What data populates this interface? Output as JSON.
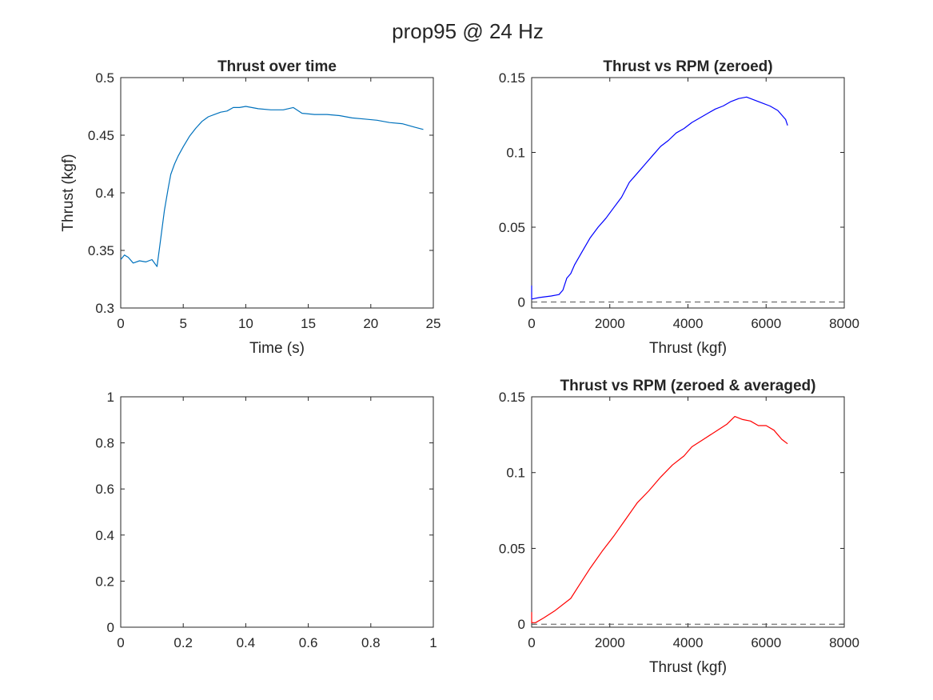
{
  "figure": {
    "title": "prop95 @ 24 Hz"
  },
  "chart_data": [
    {
      "id": "thrust-over-time",
      "type": "line",
      "title": "Thrust over time",
      "xlabel": "Time (s)",
      "ylabel": "Thrust (kgf)",
      "xlim": [
        0,
        25
      ],
      "ylim": [
        0.3,
        0.5
      ],
      "xticks": [
        0,
        5,
        10,
        15,
        20,
        25
      ],
      "yticks": [
        0.3,
        0.35,
        0.4,
        0.45,
        0.5
      ],
      "xtick_labels": [
        "0",
        "5",
        "10",
        "15",
        "20",
        "25"
      ],
      "ytick_labels": [
        "0.3",
        "0.35",
        "0.4",
        "0.45",
        "0.5"
      ],
      "grid": false,
      "series": [
        {
          "color": "#0072BD",
          "x": [
            0,
            0.3,
            0.6,
            1.0,
            1.5,
            2.0,
            2.5,
            2.9,
            3.1,
            3.5,
            3.8,
            4.0,
            4.3,
            4.6,
            5.0,
            5.5,
            6.0,
            6.5,
            7.0,
            7.5,
            8.0,
            8.5,
            9.0,
            9.5,
            10.0,
            11.0,
            12.0,
            13.0,
            13.8,
            14.5,
            15.5,
            16.5,
            17.5,
            18.5,
            19.5,
            20.5,
            21.5,
            22.5,
            23.5,
            24.2
          ],
          "y": [
            0.342,
            0.346,
            0.344,
            0.339,
            0.341,
            0.34,
            0.342,
            0.336,
            0.352,
            0.385,
            0.404,
            0.416,
            0.425,
            0.432,
            0.44,
            0.449,
            0.456,
            0.462,
            0.466,
            0.468,
            0.47,
            0.471,
            0.474,
            0.474,
            0.475,
            0.473,
            0.472,
            0.472,
            0.474,
            0.469,
            0.468,
            0.468,
            0.467,
            0.465,
            0.464,
            0.463,
            0.461,
            0.46,
            0.457,
            0.455
          ]
        }
      ]
    },
    {
      "id": "thrust-vs-rpm-zeroed",
      "type": "line",
      "title": "Thrust vs RPM (zeroed)",
      "xlabel": "Thrust (kgf)",
      "ylabel": "",
      "xlim": [
        0,
        8000
      ],
      "ylim": [
        -0.004,
        0.15
      ],
      "xticks": [
        0,
        2000,
        4000,
        6000,
        8000
      ],
      "yticks": [
        0,
        0.05,
        0.1,
        0.15
      ],
      "xtick_labels": [
        "0",
        "2000",
        "4000",
        "6000",
        "8000"
      ],
      "ytick_labels": [
        "0",
        "0.05",
        "0.1",
        "0.15"
      ],
      "grid": false,
      "reference_line": {
        "y": 0,
        "style": "dashed"
      },
      "series": [
        {
          "color": "#0000FF",
          "x": [
            0,
            0,
            200,
            500,
            700,
            800,
            900,
            1000,
            1100,
            1300,
            1500,
            1700,
            1900,
            2100,
            2300,
            2500,
            2700,
            2900,
            3100,
            3300,
            3500,
            3700,
            3900,
            4100,
            4300,
            4500,
            4700,
            4900,
            5100,
            5300,
            5500,
            5700,
            5900,
            6100,
            6300,
            6500,
            6550
          ],
          "y": [
            0.011,
            0.002,
            0.003,
            0.004,
            0.005,
            0.008,
            0.016,
            0.019,
            0.025,
            0.034,
            0.043,
            0.05,
            0.056,
            0.063,
            0.07,
            0.08,
            0.086,
            0.092,
            0.098,
            0.104,
            0.108,
            0.113,
            0.116,
            0.12,
            0.123,
            0.126,
            0.129,
            0.131,
            0.134,
            0.136,
            0.137,
            0.135,
            0.133,
            0.131,
            0.128,
            0.122,
            0.118
          ]
        }
      ]
    },
    {
      "id": "empty-axes",
      "type": "line",
      "title": "",
      "xlabel": "",
      "ylabel": "",
      "xlim": [
        0,
        1
      ],
      "ylim": [
        0,
        1
      ],
      "xticks": [
        0,
        0.2,
        0.4,
        0.6,
        0.8,
        1
      ],
      "yticks": [
        0,
        0.2,
        0.4,
        0.6,
        0.8,
        1
      ],
      "xtick_labels": [
        "0",
        "0.2",
        "0.4",
        "0.6",
        "0.8",
        "1"
      ],
      "ytick_labels": [
        "0",
        "0.2",
        "0.4",
        "0.6",
        "0.8",
        "1"
      ],
      "grid": false,
      "series": []
    },
    {
      "id": "thrust-vs-rpm-zeroed-averaged",
      "type": "line",
      "title": "Thrust vs RPM (zeroed & averaged)",
      "xlabel": "Thrust (kgf)",
      "ylabel": "",
      "xlim": [
        0,
        8000
      ],
      "ylim": [
        -0.002,
        0.15
      ],
      "xticks": [
        0,
        2000,
        4000,
        6000,
        8000
      ],
      "yticks": [
        0,
        0.05,
        0.1,
        0.15
      ],
      "xtick_labels": [
        "0",
        "2000",
        "4000",
        "6000",
        "8000"
      ],
      "ytick_labels": [
        "0",
        "0.05",
        "0.1",
        "0.15"
      ],
      "grid": false,
      "reference_line": {
        "y": 0,
        "style": "dashed"
      },
      "series": [
        {
          "color": "#FF0000",
          "x": [
            0,
            0,
            100,
            300,
            600,
            1000,
            1200,
            1500,
            1800,
            2100,
            2400,
            2700,
            3000,
            3300,
            3600,
            3900,
            4100,
            4400,
            4700,
            5000,
            5200,
            5400,
            5600,
            5800,
            6000,
            6200,
            6400,
            6550
          ],
          "y": [
            0.008,
            0.001,
            0.001,
            0.004,
            0.009,
            0.017,
            0.025,
            0.037,
            0.048,
            0.058,
            0.069,
            0.08,
            0.088,
            0.097,
            0.105,
            0.111,
            0.117,
            0.122,
            0.127,
            0.132,
            0.137,
            0.135,
            0.134,
            0.131,
            0.131,
            0.128,
            0.122,
            0.119
          ]
        }
      ]
    }
  ]
}
